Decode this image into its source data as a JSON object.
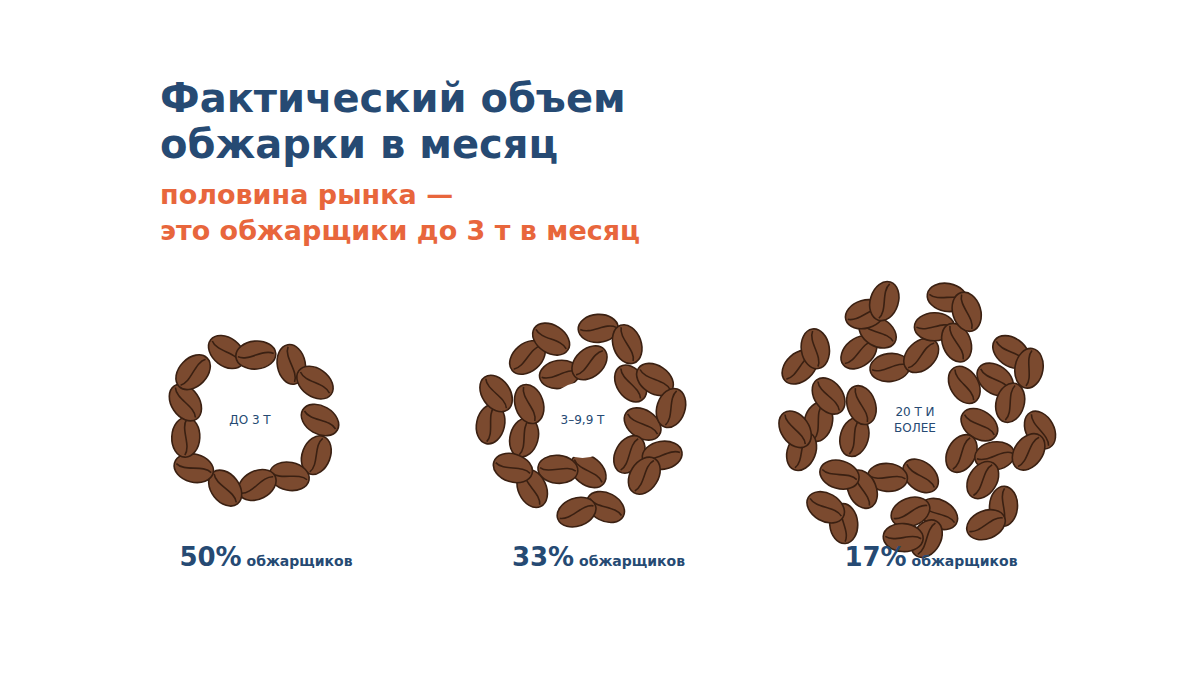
{
  "chart_data": {
    "type": "pictorial",
    "title": "Фактический объем\nобжарки в месяц",
    "subtitle": "половина рынка —\nэто обжарщики до 3 т в месяц",
    "categories": [
      "ДО 3 Т",
      "3–9,9 Т",
      "20 Т И БОЛЕЕ"
    ],
    "values": [
      50,
      33,
      17
    ],
    "value_labels": [
      "50% обжарщиков",
      "33% обжарщиков",
      "17% обжарщиков"
    ],
    "data_labels": true,
    "color": "#7b4a2f"
  }
}
